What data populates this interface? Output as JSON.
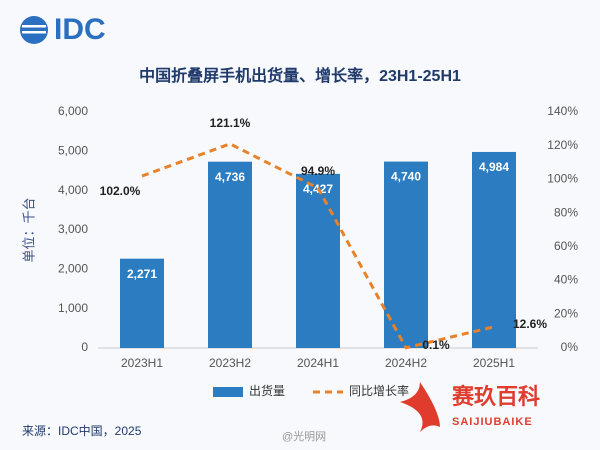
{
  "logo": "IDC",
  "source": "来源：IDC中国，2025",
  "watermarks": [
    "@光明网",
    "赛玖百科",
    "SAIJIUBAIKE"
  ],
  "chart_data": {
    "type": "bar",
    "title": "中国折叠屏手机出货量、增长率，23H1-25H1",
    "y_label": "单位：千台",
    "categories": [
      "2023H1",
      "2023H2",
      "2024H1",
      "2024H2",
      "2025H1"
    ],
    "series": [
      {
        "name": "出货量",
        "type": "bar",
        "color": "#2b7cc0",
        "values": [
          2271,
          4736,
          4427,
          4740,
          4984
        ],
        "value_labels": [
          "2,271",
          "4,736",
          "4,427",
          "4,740",
          "4,984"
        ]
      },
      {
        "name": "同比增长率",
        "type": "line",
        "axis": "y2",
        "color": "#e8822a",
        "values": [
          102.0,
          121.1,
          94.9,
          0.1,
          12.6
        ],
        "value_labels": [
          "102.0%",
          "121.1%",
          "94.9%",
          "0.1%",
          "12.6%"
        ]
      }
    ],
    "ylim": [
      0,
      6000
    ],
    "yticks": [
      0,
      {
        "value": 1000,
        "label": "1,000"
      },
      {
        "value": 2000,
        "label": "2,000"
      },
      {
        "value": 3000,
        "label": "3,000"
      },
      {
        "value": 4000,
        "label": "4,000"
      },
      {
        "value": 5000,
        "label": "5,000"
      },
      {
        "value": 6000,
        "label": "6,000"
      }
    ],
    "y2lim": [
      0,
      140
    ],
    "y2ticks": [
      {
        "value": 0,
        "label": "0%"
      },
      {
        "value": 20,
        "label": "20%"
      },
      {
        "value": 40,
        "label": "40%"
      },
      {
        "value": 60,
        "label": "60%"
      },
      {
        "value": 80,
        "label": "80%"
      },
      {
        "value": 100,
        "label": "100%"
      },
      {
        "value": 120,
        "label": "120%"
      },
      {
        "value": 140,
        "label": "140%"
      }
    ],
    "grid": false,
    "legend": "bottom"
  }
}
